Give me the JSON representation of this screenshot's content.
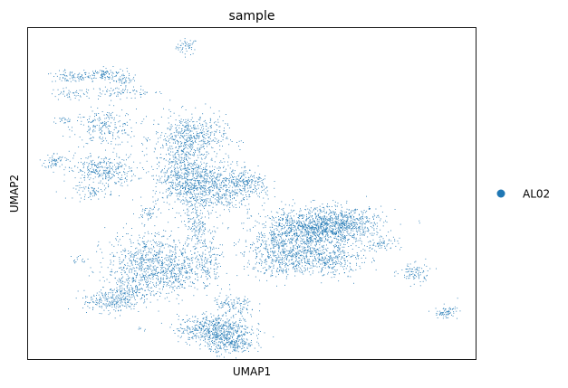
{
  "chart_data": {
    "type": "scatter",
    "title": "sample",
    "xlabel": "UMAP1",
    "ylabel": "UMAP2",
    "xlim": [
      0,
      100
    ],
    "ylim": [
      0,
      100
    ],
    "xticks": [],
    "yticks": [],
    "grid": false,
    "legend_placement": "right",
    "series": [
      {
        "name": "AL02",
        "color": "#1f77b4"
      }
    ],
    "clusters": [
      {
        "x": 35.4,
        "y": 94.5,
        "sx": 1.2,
        "sy": 1.2,
        "n": 50
      },
      {
        "x": 9.5,
        "y": 85.3,
        "sx": 2.2,
        "sy": 0.9,
        "n": 80
      },
      {
        "x": 16.9,
        "y": 86.2,
        "sx": 2.5,
        "sy": 1.0,
        "n": 110
      },
      {
        "x": 21.4,
        "y": 84.5,
        "sx": 1.2,
        "sy": 0.8,
        "n": 40
      },
      {
        "x": 20.4,
        "y": 80.6,
        "sx": 5.0,
        "sy": 0.9,
        "n": 90
      },
      {
        "x": 9.0,
        "y": 80.0,
        "sx": 2.5,
        "sy": 1.0,
        "n": 40
      },
      {
        "x": 17.0,
        "y": 70.0,
        "sx": 3.5,
        "sy": 2.8,
        "n": 220
      },
      {
        "x": 8.4,
        "y": 72.3,
        "sx": 1.6,
        "sy": 0.6,
        "n": 25
      },
      {
        "x": 5.8,
        "y": 60.0,
        "sx": 1.1,
        "sy": 1.2,
        "n": 60
      },
      {
        "x": 16.5,
        "y": 57.0,
        "sx": 3.8,
        "sy": 2.4,
        "n": 330
      },
      {
        "x": 14.5,
        "y": 50.5,
        "sx": 2.2,
        "sy": 1.0,
        "n": 60
      },
      {
        "x": 36.1,
        "y": 67.0,
        "sx": 4.0,
        "sy": 3.5,
        "n": 520
      },
      {
        "x": 34.9,
        "y": 55.0,
        "sx": 3.5,
        "sy": 4.5,
        "n": 600
      },
      {
        "x": 41.8,
        "y": 52.0,
        "sx": 4.5,
        "sy": 4.0,
        "n": 560
      },
      {
        "x": 49.3,
        "y": 53.0,
        "sx": 2.5,
        "sy": 2.0,
        "n": 160
      },
      {
        "x": 26.5,
        "y": 44.3,
        "sx": 1.2,
        "sy": 1.0,
        "n": 40
      },
      {
        "x": 37.7,
        "y": 40.5,
        "sx": 1.5,
        "sy": 4.0,
        "n": 170
      },
      {
        "x": 40.2,
        "y": 29.0,
        "sx": 1.5,
        "sy": 4.0,
        "n": 140
      },
      {
        "x": 62.5,
        "y": 38.5,
        "sx": 6.0,
        "sy": 3.5,
        "n": 1050
      },
      {
        "x": 69.5,
        "y": 41.0,
        "sx": 5.0,
        "sy": 2.5,
        "n": 600
      },
      {
        "x": 57.0,
        "y": 31.0,
        "sx": 4.5,
        "sy": 3.0,
        "n": 450
      },
      {
        "x": 66.8,
        "y": 30.0,
        "sx": 4.0,
        "sy": 2.5,
        "n": 300
      },
      {
        "x": 79.1,
        "y": 35.0,
        "sx": 2.0,
        "sy": 1.0,
        "n": 60
      },
      {
        "x": 86.1,
        "y": 26.0,
        "sx": 1.8,
        "sy": 1.6,
        "n": 90
      },
      {
        "x": 93.4,
        "y": 14.2,
        "sx": 1.3,
        "sy": 1.0,
        "n": 70
      },
      {
        "x": 26.5,
        "y": 29.5,
        "sx": 4.5,
        "sy": 4.5,
        "n": 620
      },
      {
        "x": 32.5,
        "y": 26.0,
        "sx": 3.5,
        "sy": 3.5,
        "n": 320
      },
      {
        "x": 17.2,
        "y": 17.7,
        "sx": 2.5,
        "sy": 1.6,
        "n": 150
      },
      {
        "x": 22.0,
        "y": 20.0,
        "sx": 2.5,
        "sy": 2.5,
        "n": 220
      },
      {
        "x": 11.3,
        "y": 30.1,
        "sx": 1.0,
        "sy": 0.8,
        "n": 15
      },
      {
        "x": 25.4,
        "y": 9.2,
        "sx": 0.5,
        "sy": 0.4,
        "n": 6
      },
      {
        "x": 41.5,
        "y": 9.0,
        "sx": 4.0,
        "sy": 2.2,
        "n": 600
      },
      {
        "x": 45.5,
        "y": 4.5,
        "sx": 2.5,
        "sy": 1.5,
        "n": 220
      },
      {
        "x": 46.0,
        "y": 16.0,
        "sx": 2.5,
        "sy": 2.0,
        "n": 120
      }
    ]
  }
}
